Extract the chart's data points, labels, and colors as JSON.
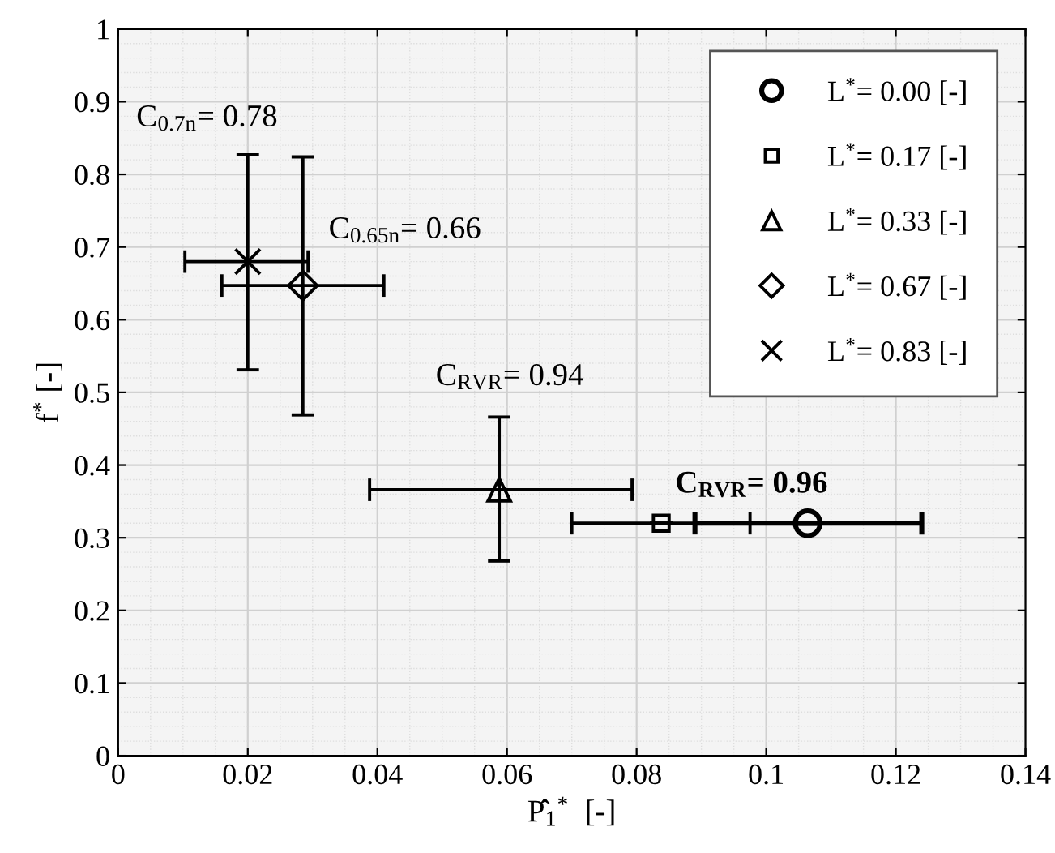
{
  "chart_data": {
    "type": "scatter",
    "xlabel": "P̂$_{1}$$^{*}$  [-]",
    "ylabel": "f$^{*}$ [-]",
    "xlim": [
      0,
      0.14
    ],
    "ylim": [
      0,
      1
    ],
    "xticks": [
      0,
      0.02,
      0.04,
      0.06,
      0.08,
      {
        "value": 0.1,
        "label": "0.1"
      },
      0.12,
      0.14
    ],
    "yticks": [
      0,
      0.1,
      0.2,
      0.3,
      0.4,
      0.5,
      0.6,
      0.7,
      0.8,
      0.9,
      1
    ],
    "grid": true,
    "legend": "top right",
    "series": [
      {
        "name": "L$^{*}$= 0.00 [-]",
        "color": "#000000",
        "marker": "circle",
        "x": [
          0.1064
        ],
        "values": [
          0.32
        ],
        "xerrors": [
          [
            0.089,
            0.124
          ]
        ],
        "errors": [
          null
        ]
      },
      {
        "name": "L$^{*}$= 0.17 [-]",
        "color": "#000000",
        "marker": "square",
        "x": [
          0.0838
        ],
        "values": [
          0.32
        ],
        "xerrors": [
          [
            0.07,
            0.0975
          ]
        ],
        "errors": [
          null
        ]
      },
      {
        "name": "L$^{*}$= 0.33 [-]",
        "color": "#000000",
        "marker": "triangle",
        "x": [
          0.0588
        ],
        "values": [
          0.366
        ],
        "xerrors": [
          [
            0.0388,
            0.0793
          ]
        ],
        "errors": [
          [
            0.268,
            0.466
          ]
        ]
      },
      {
        "name": "L$^{*}$= 0.67 [-]",
        "color": "#000000",
        "marker": "diamond",
        "x": [
          0.0285
        ],
        "values": [
          0.647
        ],
        "xerrors": [
          [
            0.016,
            0.041
          ]
        ],
        "errors": [
          [
            0.469,
            0.824
          ]
        ]
      },
      {
        "name": "L$^{*}$= 0.83 [-]",
        "color": "#000000",
        "marker": "cross",
        "x": [
          0.02
        ],
        "values": [
          0.68
        ],
        "xerrors": [
          [
            0.0103,
            0.0293
          ]
        ],
        "errors": [
          [
            0.531,
            0.827
          ]
        ]
      }
    ],
    "annotations": [
      "C$_{0.7n}$= 0.78",
      "C$_{0.65n}$= 0.66",
      "C$_{RVR}$= 0.94",
      "C$_{RVR}$= 0.96"
    ]
  }
}
